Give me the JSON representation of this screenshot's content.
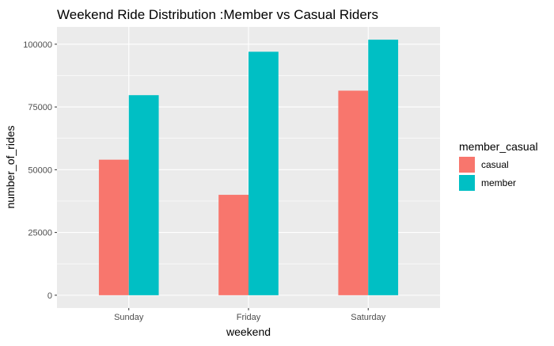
{
  "chart_data": {
    "type": "bar",
    "title": "Weekend Ride Distribution :Member vs Casual Riders",
    "xlabel": "weekend",
    "ylabel": "number_of_rides",
    "categories": [
      "Sunday",
      "Friday",
      "Saturday"
    ],
    "series": [
      {
        "name": "casual",
        "values": [
          54000,
          40000,
          81500
        ],
        "color": "#F8766D"
      },
      {
        "name": "member",
        "values": [
          79700,
          97000,
          101800
        ],
        "color": "#00BFC4"
      }
    ],
    "y_ticks": [
      0,
      25000,
      50000,
      75000,
      100000
    ],
    "y_tick_labels": [
      "0",
      "25000",
      "50000",
      "75000",
      "100000"
    ],
    "ylim": [
      -5090,
      106890
    ],
    "legend": {
      "title": "member_casual",
      "position": "right"
    },
    "grid": true,
    "panel_background": "#EBEBEB",
    "grid_color": "#FFFFFF"
  }
}
